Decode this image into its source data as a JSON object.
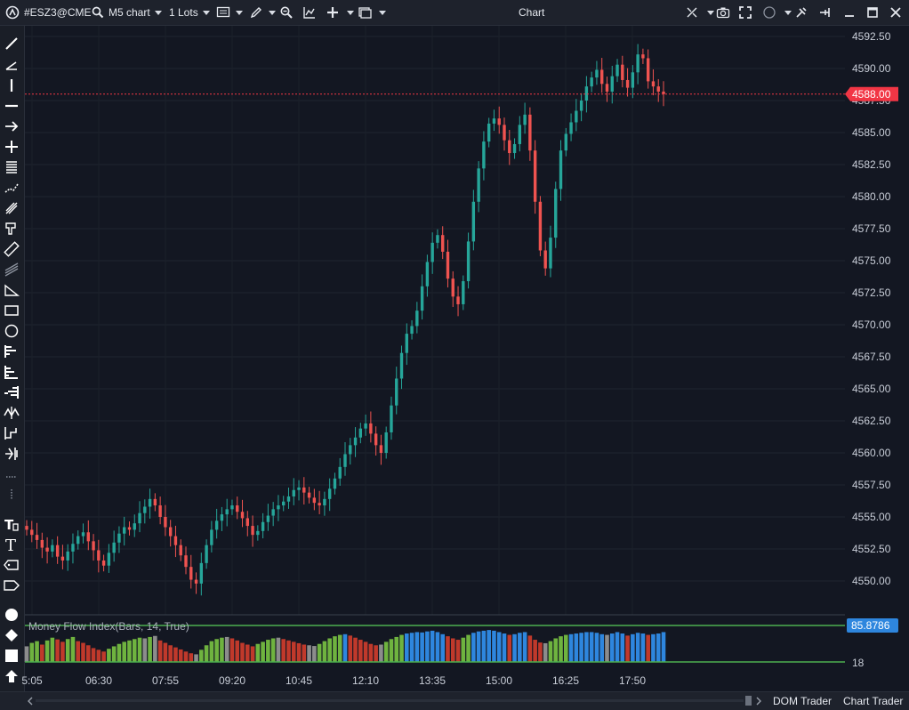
{
  "window": {
    "symbol": "#ESZ3@CME",
    "timeframe": "M5 chart",
    "lots": "1 Lots",
    "title": "Chart"
  },
  "price_axis": {
    "labels": [
      "4592.50",
      "4590.00",
      "4587.50",
      "4585.00",
      "4582.50",
      "4580.00",
      "4577.50",
      "4575.00",
      "4572.50",
      "4570.00",
      "4567.50",
      "4565.00",
      "4562.50",
      "4560.00",
      "4557.50",
      "4555.00",
      "4552.50",
      "4550.00"
    ],
    "current_price": "4588.00",
    "current_price_color": "#f23645"
  },
  "time_axis": {
    "labels": [
      "5:05",
      "06:30",
      "07:55",
      "09:20",
      "10:45",
      "12:10",
      "13:35",
      "15:00",
      "16:25",
      "17:50"
    ]
  },
  "indicator": {
    "title": "Money Flow Index(Bars, 14, True)",
    "value_label": "85.8786",
    "value_color": "#2e86de",
    "level_label": "18",
    "level_color": "#4caf50"
  },
  "tabs": [
    "DOM Trader",
    "Chart Trader"
  ],
  "colors": {
    "up": "#26a69a",
    "down": "#ef5350"
  },
  "chart_data": {
    "type": "candlestick",
    "y_range": [
      4548.5,
      4594
    ],
    "tick_labels": [
      "4592.50",
      "4590.00",
      "4587.50",
      "4585.00",
      "4582.50",
      "4580.00",
      "4577.50",
      "4575.00",
      "4572.50",
      "4570.00",
      "4567.50",
      "4565.00",
      "4562.50",
      "4560.00",
      "4557.50",
      "4555.00",
      "4552.50",
      "4550.00"
    ],
    "x_tick_labels": [
      "5:05",
      "06:30",
      "07:55",
      "09:20",
      "10:45",
      "12:10",
      "13:35",
      "15:00",
      "16:25",
      "17:50"
    ],
    "current_price": 4588.0,
    "closes": [
      4554.0,
      4553.6,
      4553.2,
      4552.6,
      4552.3,
      4552.8,
      4551.9,
      4551.6,
      4552.3,
      4552.9,
      4553.5,
      4553.8,
      4553.1,
      4552.4,
      4551.6,
      4551.2,
      4552.2,
      4553.0,
      4553.7,
      4554.2,
      4554.0,
      4554.5,
      4555.3,
      4555.8,
      4556.4,
      4555.9,
      4555.0,
      4554.2,
      4553.5,
      4552.8,
      4552.0,
      4551.1,
      4550.1,
      4549.8,
      4551.4,
      4552.8,
      4554.0,
      4554.7,
      4555.2,
      4555.6,
      4555.9,
      4555.4,
      4554.9,
      4554.3,
      4553.6,
      4553.9,
      4554.6,
      4555.1,
      4555.6,
      4555.9,
      4556.2,
      4556.6,
      4557.1,
      4557.3,
      4556.9,
      4556.5,
      4556.1,
      4555.9,
      4556.4,
      4557.2,
      4558.0,
      4558.9,
      4559.9,
      4560.6,
      4561.2,
      4561.9,
      4562.3,
      4561.5,
      4560.6,
      4560.0,
      4561.6,
      4563.7,
      4565.8,
      4567.8,
      4569.3,
      4569.9,
      4571.1,
      4573.0,
      4574.9,
      4576.4,
      4577.0,
      4575.7,
      4573.6,
      4572.2,
      4571.6,
      4573.4,
      4576.5,
      4579.6,
      4582.2,
      4584.3,
      4585.7,
      4586.1,
      4585.6,
      4584.4,
      4583.4,
      4584.1,
      4585.6,
      4586.4,
      4583.6,
      4579.6,
      4575.8,
      4574.4,
      4576.8,
      4580.6,
      4583.6,
      4584.9,
      4585.8,
      4586.7,
      4587.5,
      4588.6,
      4589.3,
      4589.9,
      4588.8,
      4588.2,
      4589.4,
      4590.3,
      4589.1,
      4588.5,
      4589.7,
      4591.1,
      4590.8,
      4589.0,
      4588.6,
      4588.2,
      4588.0
    ],
    "mfi": [
      45,
      55,
      60,
      50,
      62,
      70,
      65,
      58,
      66,
      72,
      60,
      55,
      48,
      40,
      35,
      30,
      38,
      45,
      52,
      58,
      62,
      66,
      70,
      68,
      72,
      75,
      62,
      55,
      48,
      42,
      36,
      30,
      25,
      22,
      35,
      48,
      60,
      66,
      70,
      72,
      68,
      62,
      55,
      50,
      45,
      52,
      58,
      64,
      68,
      70,
      66,
      62,
      58,
      54,
      50,
      48,
      46,
      52,
      60,
      68,
      74,
      78,
      80,
      76,
      70,
      64,
      58,
      52,
      48,
      50,
      58,
      66,
      72,
      78,
      82,
      84,
      86,
      85,
      88,
      90,
      86,
      80,
      74,
      68,
      64,
      70,
      78,
      84,
      88,
      90,
      92,
      90,
      86,
      82,
      78,
      80,
      84,
      86,
      76,
      64,
      56,
      54,
      60,
      68,
      74,
      78,
      80,
      82,
      84,
      86,
      86,
      84,
      80,
      78,
      82,
      86,
      82,
      76,
      80,
      84,
      82,
      78,
      80,
      82,
      86
    ],
    "mfi_range": [
      0,
      100
    ],
    "mfi_upper_level": 85.8786,
    "mfi_lower_level": 18
  }
}
